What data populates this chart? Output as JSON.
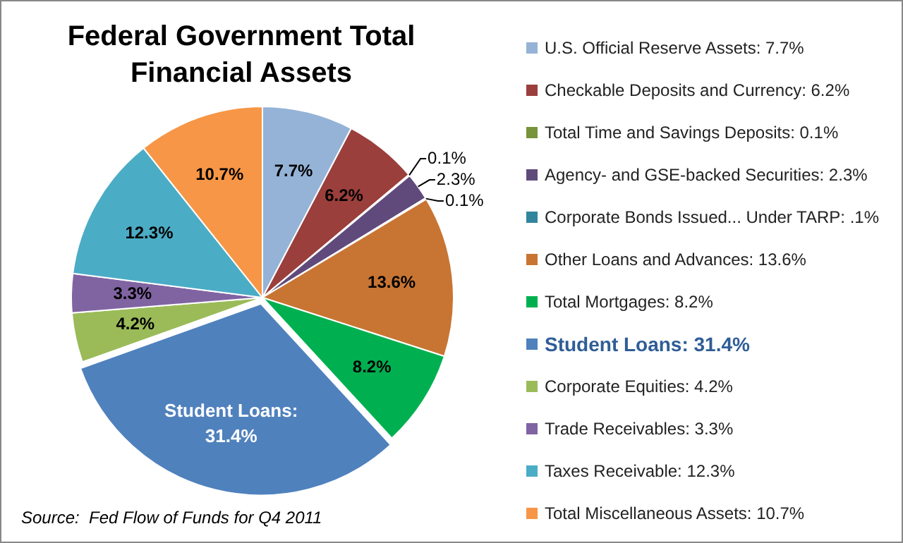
{
  "chart_data": {
    "type": "pie",
    "title": "Federal Government Total Financial Assets",
    "categories": [
      "U.S. Official Reserve Assets: 7.7%",
      "Checkable Deposits and Currency: 6.2%",
      "Total Time and Savings Deposits: 0.1%",
      "Agency- and GSE-backed Securities: 2.3%",
      "Corporate Bonds Issued... Under TARP: .1%",
      "Other Loans and Advances: 13.6%",
      "Total Mortgages: 8.2%",
      "Student Loans: 31.4%",
      "Corporate Equities: 4.2%",
      "Trade Receivables: 3.3%",
      "Taxes Receivable: 12.3%",
      "Total Miscellaneous Assets: 10.7%"
    ],
    "values": [
      7.7,
      6.2,
      0.1,
      2.3,
      0.1,
      13.6,
      8.2,
      31.4,
      4.2,
      3.3,
      12.3,
      10.7
    ],
    "colors": [
      "#95b3d7",
      "#9b3f3c",
      "#77933c",
      "#604a7b",
      "#31859c",
      "#c87533",
      "#00b050",
      "#4f81bd",
      "#9bbb59",
      "#8064a2",
      "#4bacc6",
      "#f79646"
    ],
    "value_labels": [
      "7.7%",
      "6.2%",
      "0.1%",
      "2.3%",
      "0.1%",
      "13.6%",
      "8.2%",
      "Student Loans:\n31.4%",
      "4.2%",
      "3.3%",
      "12.3%",
      "10.7%"
    ],
    "legend": "right",
    "annotations": [
      "Source:  Fed Flow of Funds for Q4 2011"
    ]
  }
}
